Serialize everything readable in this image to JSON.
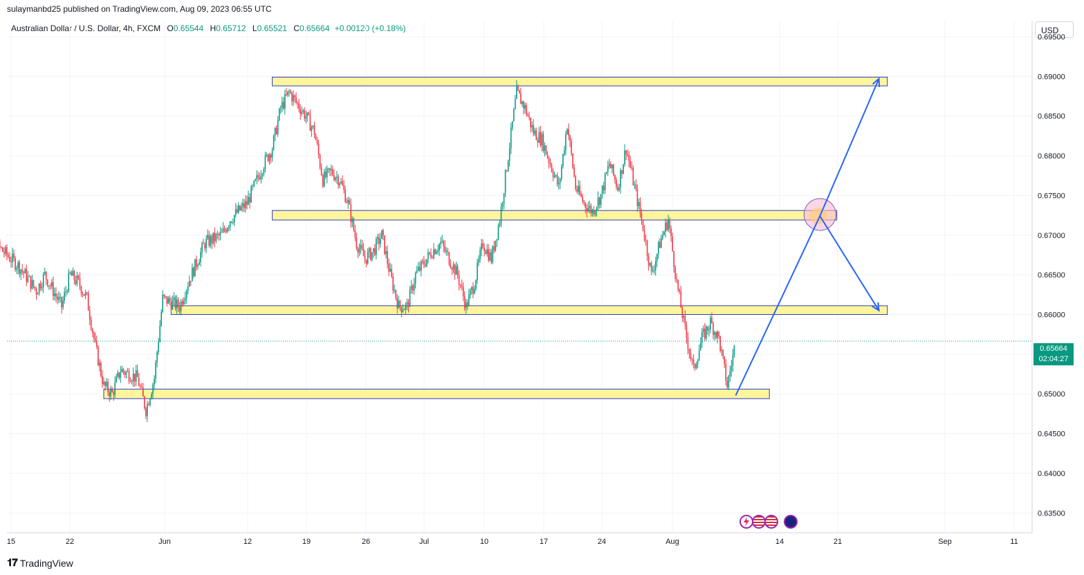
{
  "header": {
    "published_by": "sulaymanbd25 published on TradingView.com, Aug 09, 2023 06:55 UTC"
  },
  "legend": {
    "symbol": "Australian Dollar / U.S. Dollar, 4h, FXCM",
    "open_label": "O",
    "open": "0.65544",
    "high_label": "H",
    "high": "0.65712",
    "low_label": "L",
    "low": "0.65521",
    "close_label": "C",
    "close": "0.65664",
    "change": "+0.00120 (+0.18%)"
  },
  "currency_button": "USD",
  "last_price": {
    "value": "0.65664",
    "countdown": "02:04:27"
  },
  "brand": {
    "name": "TradingView",
    "logo": "TV logo"
  },
  "colors": {
    "up": "#089981",
    "down": "#f23645",
    "zone_fill": "#fff59d",
    "zone_stroke": "#2a3fbd",
    "projection": "#2962ff"
  },
  "chart_data": {
    "type": "candlestick",
    "ylim": [
      0.6325,
      0.697
    ],
    "y_ticks": [
      "0.69500",
      "0.69000",
      "0.68500",
      "0.68000",
      "0.67500",
      "0.67000",
      "0.66500",
      "0.66000",
      "0.65500",
      "0.65000",
      "0.64500",
      "0.64000",
      "0.63500"
    ],
    "x_ticks": [
      "15",
      "22",
      "Jun",
      "12",
      "19",
      "26",
      "Jul",
      "10",
      "17",
      "24",
      "Aug",
      "14",
      "21",
      "Sep",
      "11"
    ],
    "close_path": [
      [
        "2023-05-11",
        0.664
      ],
      [
        "2023-05-12",
        0.67
      ],
      [
        "2023-05-13",
        0.669
      ],
      [
        "2023-05-16",
        0.666
      ],
      [
        "2023-05-18",
        0.663
      ],
      [
        "2023-05-19",
        0.665
      ],
      [
        "2023-05-21",
        0.661
      ],
      [
        "2023-05-22",
        0.665
      ],
      [
        "2023-05-23",
        0.664
      ],
      [
        "2023-05-24",
        0.662
      ],
      [
        "2023-05-25",
        0.656
      ],
      [
        "2023-05-26",
        0.651
      ],
      [
        "2023-05-27",
        0.65
      ],
      [
        "2023-05-28",
        0.653
      ],
      [
        "2023-05-30",
        0.652
      ],
      [
        "2023-05-31",
        0.648
      ],
      [
        "2023-06-01",
        0.652
      ],
      [
        "2023-06-02",
        0.662
      ],
      [
        "2023-06-04",
        0.661
      ],
      [
        "2023-06-05",
        0.664
      ],
      [
        "2023-06-07",
        0.669
      ],
      [
        "2023-06-09",
        0.67
      ],
      [
        "2023-06-10",
        0.672
      ],
      [
        "2023-06-12",
        0.674
      ],
      [
        "2023-06-14",
        0.679
      ],
      [
        "2023-06-15",
        0.681
      ],
      [
        "2023-06-16",
        0.686
      ],
      [
        "2023-06-17",
        0.688
      ],
      [
        "2023-06-19",
        0.685
      ],
      [
        "2023-06-20",
        0.683
      ],
      [
        "2023-06-21",
        0.677
      ],
      [
        "2023-06-22",
        0.678
      ],
      [
        "2023-06-23",
        0.677
      ],
      [
        "2023-06-24",
        0.674
      ],
      [
        "2023-06-25",
        0.669
      ],
      [
        "2023-06-26",
        0.667
      ],
      [
        "2023-06-27",
        0.668
      ],
      [
        "2023-06-28",
        0.67
      ],
      [
        "2023-06-29",
        0.665
      ],
      [
        "2023-06-30",
        0.661
      ],
      [
        "2023-07-01",
        0.661
      ],
      [
        "2023-07-02",
        0.665
      ],
      [
        "2023-07-04",
        0.668
      ],
      [
        "2023-07-05",
        0.669
      ],
      [
        "2023-07-06",
        0.667
      ],
      [
        "2023-07-07",
        0.665
      ],
      [
        "2023-07-08",
        0.661
      ],
      [
        "2023-07-09",
        0.664
      ],
      [
        "2023-07-10",
        0.669
      ],
      [
        "2023-07-11",
        0.667
      ],
      [
        "2023-07-12",
        0.672
      ],
      [
        "2023-07-13",
        0.68
      ],
      [
        "2023-07-14",
        0.688
      ],
      [
        "2023-07-15",
        0.686
      ],
      [
        "2023-07-16",
        0.683
      ],
      [
        "2023-07-17",
        0.682
      ],
      [
        "2023-07-18",
        0.679
      ],
      [
        "2023-07-19",
        0.676
      ],
      [
        "2023-07-20",
        0.684
      ],
      [
        "2023-07-21",
        0.676
      ],
      [
        "2023-07-22",
        0.674
      ],
      [
        "2023-07-23",
        0.673
      ],
      [
        "2023-07-24",
        0.675
      ],
      [
        "2023-07-25",
        0.679
      ],
      [
        "2023-07-26",
        0.676
      ],
      [
        "2023-07-27",
        0.681
      ],
      [
        "2023-07-28",
        0.676
      ],
      [
        "2023-07-29",
        0.671
      ],
      [
        "2023-07-30",
        0.665
      ],
      [
        "2023-07-31",
        0.669
      ],
      [
        "2023-08-01",
        0.672
      ],
      [
        "2023-08-02",
        0.664
      ],
      [
        "2023-08-03",
        0.658
      ],
      [
        "2023-08-04",
        0.653
      ],
      [
        "2023-08-05",
        0.657
      ],
      [
        "2023-08-06",
        0.659
      ],
      [
        "2023-08-07",
        0.657
      ],
      [
        "2023-08-08",
        0.651
      ],
      [
        "2023-08-09",
        0.6566
      ]
    ],
    "zones": [
      {
        "start": "2023-06-15",
        "end": "2023-08-27",
        "low": 0.6888,
        "high": 0.6899
      },
      {
        "start": "2023-06-15",
        "end": "2023-08-21",
        "low": 0.6719,
        "high": 0.6731
      },
      {
        "start": "2023-06-03",
        "end": "2023-08-27",
        "low": 0.66,
        "high": 0.6611
      },
      {
        "start": "2023-05-26",
        "end": "2023-08-13",
        "low": 0.6494,
        "high": 0.6506
      }
    ],
    "projection": [
      [
        "2023-08-09",
        0.6498
      ],
      [
        "2023-08-19",
        0.6724
      ],
      [
        "2023-08-26",
        0.6897
      ]
    ],
    "projection_alt": [
      [
        "2023-08-19",
        0.6724
      ],
      [
        "2023-08-26",
        0.6605
      ]
    ],
    "highlight_circle": {
      "date": "2023-08-19",
      "price": 0.6726
    }
  }
}
